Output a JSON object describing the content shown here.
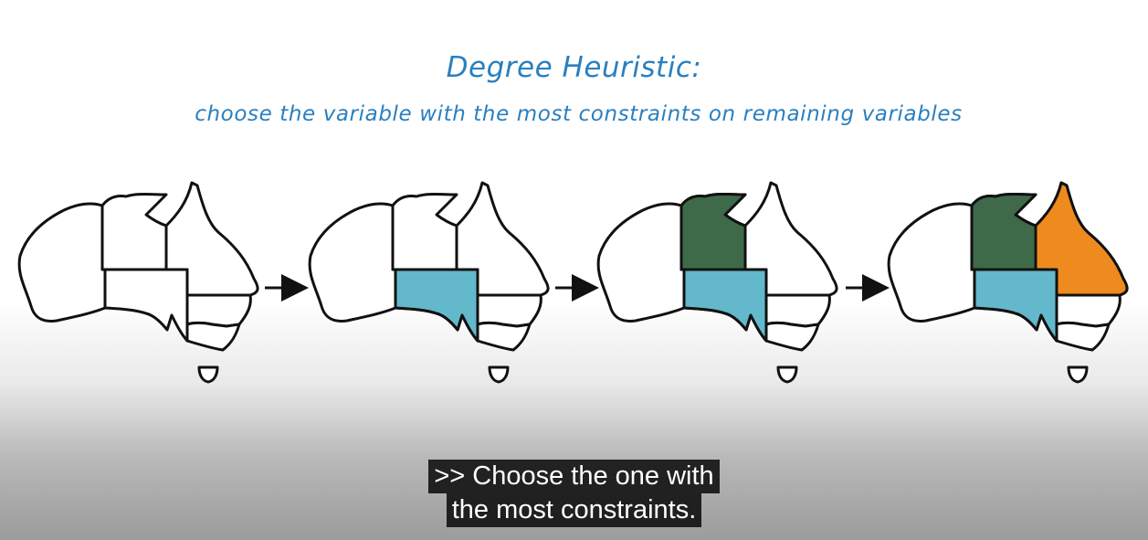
{
  "heading": {
    "title": "Degree Heuristic:",
    "subtitle": "choose the variable with the most constraints on remaining variables"
  },
  "maps": [
    {
      "name": "map-step-1",
      "fills": {}
    },
    {
      "name": "map-step-2",
      "fills": {
        "south-australia": "#63b8cc"
      }
    },
    {
      "name": "map-step-3",
      "fills": {
        "south-australia": "#63b8cc",
        "northern-territory": "#3f6a4a"
      }
    },
    {
      "name": "map-step-4",
      "fills": {
        "south-australia": "#63b8cc",
        "northern-territory": "#3f6a4a",
        "queensland": "#ee8a1e"
      }
    }
  ],
  "colors": {
    "heading": "#2a7fbf",
    "caption_bg": "#080808",
    "caption_text": "#ffffff"
  },
  "caption": {
    "line1": ">> Choose the one with",
    "line2": "the most constraints."
  }
}
